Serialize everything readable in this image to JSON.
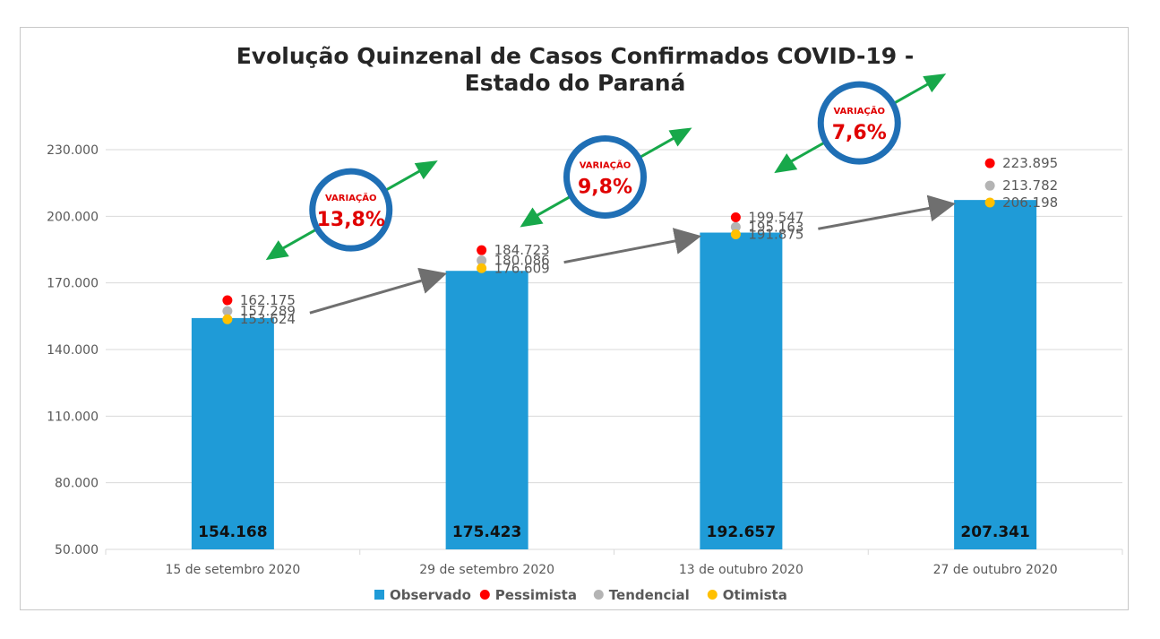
{
  "chart_data": {
    "type": "bar",
    "title": "Evolução Quinzenal de Casos Confirmados COVID-19 -",
    "subtitle": "Estado do Paraná",
    "categories": [
      "15 de setembro 2020",
      "29 de setembro 2020",
      "13 de outubro 2020",
      "27 de outubro 2020"
    ],
    "ylim": [
      50000,
      230000
    ],
    "yticks": [
      50000,
      80000,
      110000,
      140000,
      170000,
      200000,
      230000
    ],
    "ytick_labels": [
      "50.000",
      "80.000",
      "110.000",
      "140.000",
      "170.000",
      "200.000",
      "230.000"
    ],
    "grid": true,
    "legend_position": "bottom",
    "series": [
      {
        "name": "Observado",
        "kind": "bar",
        "color": "#1f9bd7",
        "values": [
          154168,
          175423,
          192657,
          207341
        ],
        "labels": [
          "154.168",
          "175.423",
          "192.657",
          "207.341"
        ]
      },
      {
        "name": "Pessimista",
        "kind": "point",
        "color": "#ff0000",
        "values": [
          162175,
          184723,
          199547,
          223895
        ],
        "labels": [
          "162.175",
          "184.723",
          "199.547",
          "223.895"
        ]
      },
      {
        "name": "Tendencial",
        "kind": "point",
        "color": "#b4b4b4",
        "values": [
          157289,
          180086,
          195163,
          213782
        ],
        "labels": [
          "157.289",
          "180.086",
          "195.163",
          "213.782"
        ]
      },
      {
        "name": "Otimista",
        "kind": "point",
        "color": "#ffc000",
        "values": [
          153624,
          176609,
          191875,
          206198
        ],
        "labels": [
          "153.624",
          "176.609",
          "191.875",
          "206.198"
        ]
      }
    ],
    "annotations": [
      {
        "title": "VARIAÇÃO",
        "value": "13,8%"
      },
      {
        "title": "VARIAÇÃO",
        "value": "9,8%"
      },
      {
        "title": "VARIAÇÃO",
        "value": "7,6%"
      }
    ],
    "colors": {
      "circle": "#1f6fb5",
      "arrow_up": "#17a84a",
      "trend_arrow": "#6f6f6f",
      "variation_text": "#e00000"
    }
  }
}
